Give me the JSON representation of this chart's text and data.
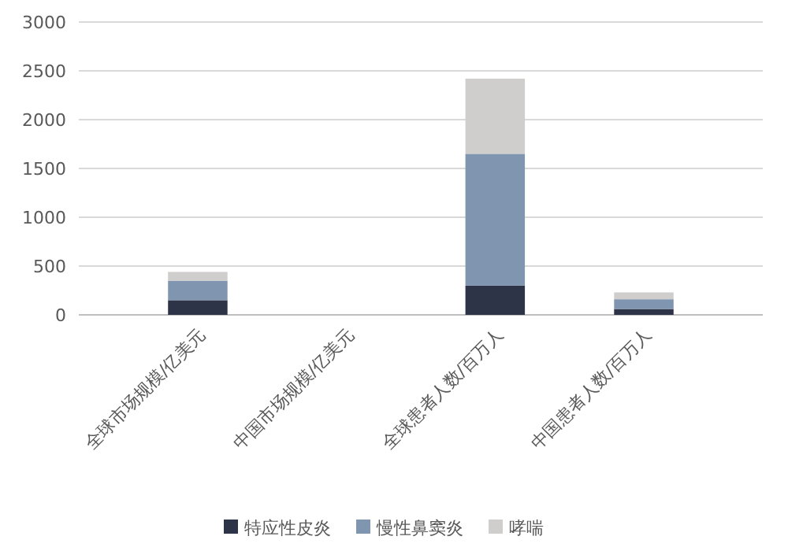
{
  "chart_data": {
    "type": "bar",
    "stacked": true,
    "categories": [
      "全球市场规模/亿美元",
      "中国市场规模/亿美元",
      "全球患者人数/百万人",
      "中国患者人数/百万人"
    ],
    "series": [
      {
        "name": "特应性皮炎",
        "color": "#2e3447",
        "values": [
          150,
          null,
          300,
          60
        ]
      },
      {
        "name": "慢性鼻窦炎",
        "color": "#8096b0",
        "values": [
          200,
          null,
          1350,
          100
        ]
      },
      {
        "name": "哮喘",
        "color": "#d0cdcd",
        "values": [
          90,
          null,
          770,
          70
        ]
      }
    ],
    "ylim": [
      0,
      3000
    ],
    "yticks": [
      0,
      500,
      1000,
      1500,
      2000,
      2500,
      3000
    ],
    "grid": "y",
    "legend": "bottom"
  }
}
